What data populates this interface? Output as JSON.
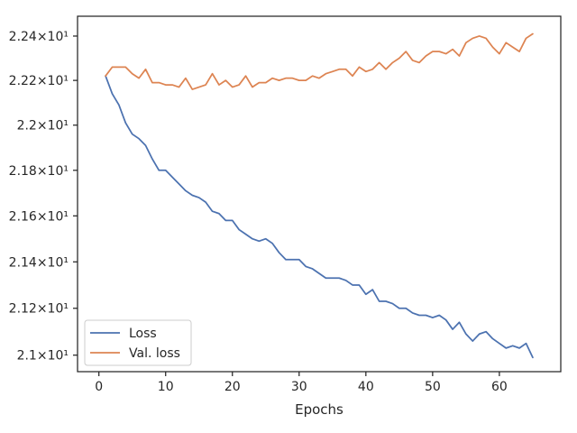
{
  "chart_data": {
    "type": "line",
    "title": "",
    "xlabel": "Epochs",
    "ylabel": "",
    "yscale": "log",
    "xlim": [
      -3.2,
      69.2
    ],
    "ylim": [
      20.93,
      22.49
    ],
    "xticks": [
      0,
      10,
      20,
      30,
      40,
      50,
      60
    ],
    "yticks": [
      21.0,
      21.2,
      21.4,
      21.6,
      21.8,
      22.0,
      22.2,
      22.4
    ],
    "ytick_labels": [
      "2.1×10¹",
      "2.12×10¹",
      "2.14×10¹",
      "2.16×10¹",
      "2.18×10¹",
      "2.2×10¹",
      "2.22×10¹",
      "2.24×10¹"
    ],
    "grid": false,
    "legend_position": "lower-left",
    "x": [
      1,
      2,
      3,
      4,
      5,
      6,
      7,
      8,
      9,
      10,
      11,
      12,
      13,
      14,
      15,
      16,
      17,
      18,
      19,
      20,
      21,
      22,
      23,
      24,
      25,
      26,
      27,
      28,
      29,
      30,
      31,
      32,
      33,
      34,
      35,
      36,
      37,
      38,
      39,
      40,
      41,
      42,
      43,
      44,
      45,
      46,
      47,
      48,
      49,
      50,
      51,
      52,
      53,
      54,
      55,
      56,
      57,
      58,
      59,
      60,
      61,
      62,
      63,
      64,
      65
    ],
    "series": [
      {
        "name": "Loss",
        "color": "#4c72b0",
        "values": [
          22.22,
          22.14,
          22.09,
          22.01,
          21.96,
          21.94,
          21.91,
          21.85,
          21.8,
          21.8,
          21.77,
          21.74,
          21.71,
          21.69,
          21.68,
          21.66,
          21.62,
          21.61,
          21.58,
          21.58,
          21.54,
          21.52,
          21.5,
          21.49,
          21.5,
          21.48,
          21.44,
          21.41,
          21.41,
          21.41,
          21.38,
          21.37,
          21.35,
          21.33,
          21.33,
          21.33,
          21.32,
          21.3,
          21.3,
          21.26,
          21.28,
          21.23,
          21.23,
          21.22,
          21.2,
          21.2,
          21.18,
          21.17,
          21.17,
          21.16,
          21.17,
          21.15,
          21.11,
          21.14,
          21.09,
          21.06,
          21.09,
          21.1,
          21.07,
          21.05,
          21.03,
          21.04,
          21.03,
          21.05,
          20.99
        ]
      },
      {
        "name": "Val. loss",
        "color": "#dd8452",
        "values": [
          22.22,
          22.26,
          22.26,
          22.26,
          22.23,
          22.21,
          22.25,
          22.19,
          22.19,
          22.18,
          22.18,
          22.17,
          22.21,
          22.16,
          22.17,
          22.18,
          22.23,
          22.18,
          22.2,
          22.17,
          22.18,
          22.22,
          22.17,
          22.19,
          22.19,
          22.21,
          22.2,
          22.21,
          22.21,
          22.2,
          22.2,
          22.22,
          22.21,
          22.23,
          22.24,
          22.25,
          22.25,
          22.22,
          22.26,
          22.24,
          22.25,
          22.28,
          22.25,
          22.28,
          22.3,
          22.33,
          22.29,
          22.28,
          22.31,
          22.33,
          22.33,
          22.32,
          22.34,
          22.31,
          22.37,
          22.39,
          22.4,
          22.39,
          22.35,
          22.32,
          22.37,
          22.35,
          22.33,
          22.39,
          22.41
        ]
      }
    ]
  }
}
